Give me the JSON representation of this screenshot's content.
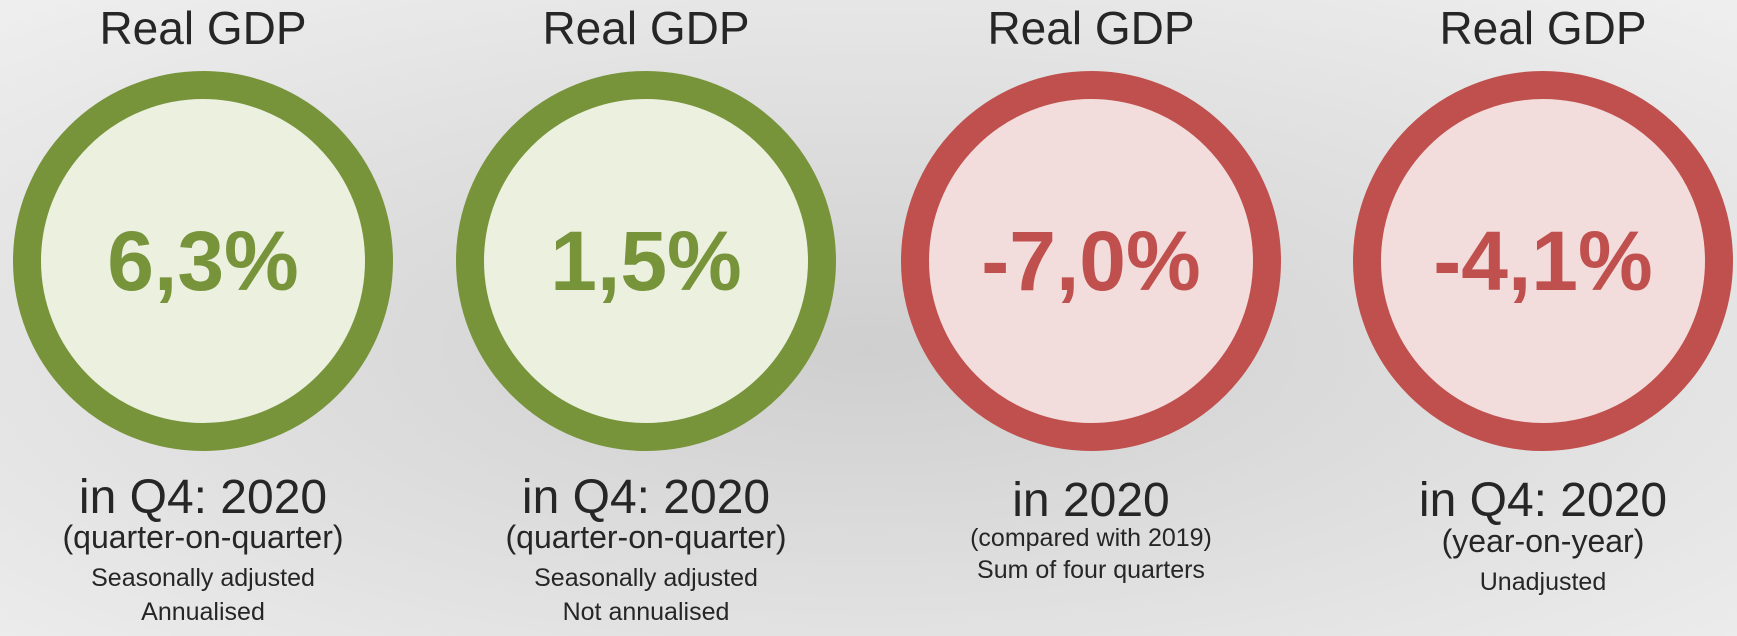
{
  "cards": [
    {
      "title": "Real GDP",
      "value": "6,3%",
      "period": "in Q4: 2020",
      "basis": "(quarter-on-quarter)",
      "notes": [
        "Seasonally adjusted",
        "Annualised"
      ]
    },
    {
      "title": "Real GDP",
      "value": "1,5%",
      "period": "in Q4: 2020",
      "basis": "(quarter-on-quarter)",
      "notes": [
        "Seasonally adjusted",
        "Not annualised"
      ]
    },
    {
      "title": "Real GDP",
      "value": "-7,0%",
      "period": "in 2020",
      "basis": "(compared with 2019)",
      "notes": [
        "Sum of four quarters"
      ]
    },
    {
      "title": "Real GDP",
      "value": "-4,1%",
      "period": "in Q4: 2020",
      "basis": "(year-on-year)",
      "notes": [
        "Unadjusted"
      ]
    }
  ]
}
